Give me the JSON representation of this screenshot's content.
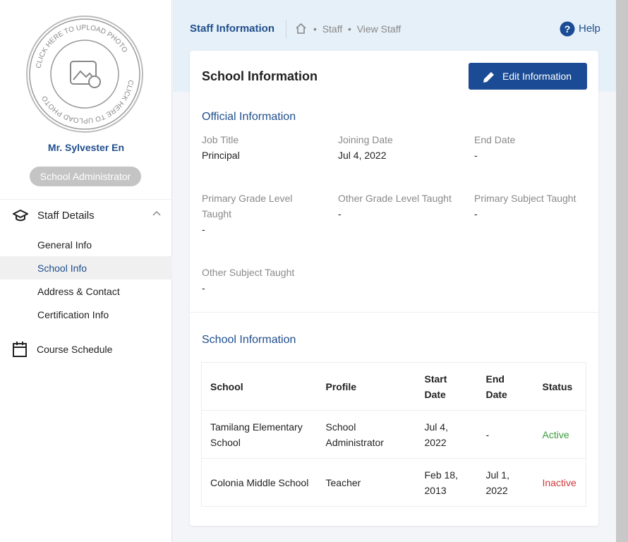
{
  "sidebar": {
    "upload_text": "CLICK HERE TO UPLOAD PHOTO",
    "name": "Mr. Sylvester En",
    "role": "School Administrator",
    "nav": [
      {
        "label": "Staff Details",
        "items": [
          "General Info",
          "School Info",
          "Address & Contact",
          "Certification Info"
        ]
      },
      {
        "label": "Course Schedule"
      }
    ]
  },
  "header": {
    "title": "Staff Information",
    "breadcrumb": [
      "Staff",
      "View Staff"
    ],
    "help": "Help"
  },
  "card": {
    "title": "School Information",
    "button": "Edit Information",
    "official": {
      "heading": "Official Information",
      "fields": [
        {
          "label": "Job Title",
          "value": "Principal"
        },
        {
          "label": "Joining Date",
          "value": "Jul 4, 2022"
        },
        {
          "label": "End Date",
          "value": "-"
        },
        {
          "label": "Primary Grade Level Taught",
          "value": "-"
        },
        {
          "label": "Other Grade Level Taught",
          "value": "-"
        },
        {
          "label": "Primary Subject Taught",
          "value": "-"
        },
        {
          "label": "Other Subject Taught",
          "value": "-"
        }
      ]
    },
    "schools": {
      "heading": "School Information",
      "columns": [
        "School",
        "Profile",
        "Start Date",
        "End Date",
        "Status"
      ],
      "rows": [
        [
          "Tamilang Elementary School",
          "School Administrator",
          "Jul 4, 2022",
          "-",
          "Active"
        ],
        [
          "Colonia Middle School",
          "Teacher",
          "Feb 18, 2013",
          "Jul 1, 2022",
          "Inactive"
        ]
      ]
    }
  }
}
